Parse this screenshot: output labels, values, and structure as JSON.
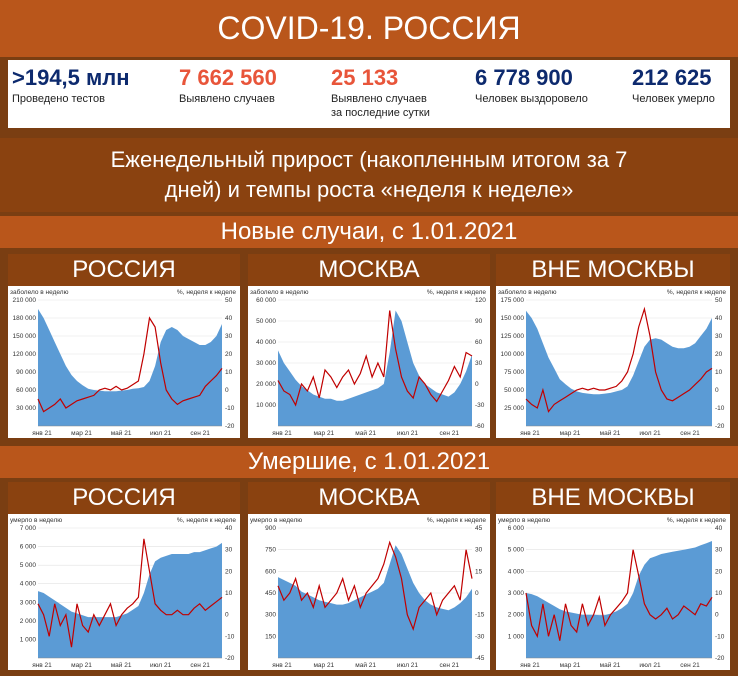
{
  "title": "COVID-19. РОССИЯ",
  "stats": [
    {
      "value": ">194,5 млн",
      "label": "Проведено тестов",
      "label2": "",
      "color": "#0d2a6e"
    },
    {
      "value": "7 662 560",
      "label": "Выявлено случаев",
      "label2": "",
      "color": "#e8553a"
    },
    {
      "value": "25 133",
      "label": "Выявлено случаев",
      "label2": "за последние сутки",
      "color": "#e8553a"
    },
    {
      "value": "6 778 900",
      "label": "Человек выздоровело",
      "label2": "",
      "color": "#0d2a6e"
    },
    {
      "value": "212 625",
      "label": "Человек умерло",
      "label2": "",
      "color": "#0d2a6e"
    }
  ],
  "subtitle_line1": "Еженедельный прирост (накопленным итогом за 7",
  "subtitle_line2": "дней) и темпы роста «неделя к неделе»",
  "section_cases": "Новые случаи, с 1.01.2021",
  "section_deaths": "Умершие, с 1.01.2021",
  "region_names": [
    "РОССИЯ",
    "МОСКВА",
    "ВНЕ МОСКВЫ"
  ],
  "colors": {
    "area": "#5b9bd5",
    "line": "#c00000",
    "orange": "#b9561b",
    "brown": "#8a4210"
  },
  "chart_data": [
    {
      "id": "cases-russia",
      "type": "area",
      "ylabel_left": "заболело в неделю",
      "ylabel_right": "%, неделя к неделе",
      "x_ticks": [
        "янв 21",
        "мар 21",
        "май 21",
        "июл 21",
        "сен 21"
      ],
      "ylim_left": [
        0,
        210000
      ],
      "y_ticks_left": [
        "30 000",
        "60 000",
        "90 000",
        "120 000",
        "150 000",
        "180 000",
        "210 000"
      ],
      "ylim_right": [
        -20,
        50
      ],
      "y_ticks_right": [
        "-20",
        "-10",
        "0",
        "10",
        "20",
        "30",
        "40",
        "50"
      ],
      "series": [
        {
          "values": [
            195000,
            180000,
            160000,
            140000,
            120000,
            100000,
            85000,
            75000,
            68000,
            62000,
            60000,
            59000,
            58000,
            58000,
            58000,
            59000,
            60000,
            62000,
            63000,
            65000,
            75000,
            100000,
            140000,
            160000,
            165000,
            160000,
            150000,
            145000,
            140000,
            135000,
            135000,
            140000,
            150000,
            170000
          ]
        },
        {
          "values": [
            -5,
            -12,
            -10,
            -8,
            -5,
            -10,
            -8,
            -6,
            -5,
            -4,
            -3,
            0,
            1,
            0,
            2,
            0,
            1,
            3,
            5,
            20,
            40,
            35,
            15,
            0,
            -5,
            -8,
            -6,
            -5,
            -4,
            -3,
            2,
            5,
            8,
            12
          ]
        }
      ]
    },
    {
      "id": "cases-moscow",
      "type": "area",
      "ylabel_left": "заболело в неделю",
      "ylabel_right": "%, неделя к неделе",
      "x_ticks": [
        "янв 21",
        "мар 21",
        "май 21",
        "июл 21",
        "сен 21"
      ],
      "ylim_left": [
        0,
        60000
      ],
      "y_ticks_left": [
        "10 000",
        "20 000",
        "30 000",
        "40 000",
        "50 000",
        "60 000"
      ],
      "ylim_right": [
        -60,
        120
      ],
      "y_ticks_right": [
        "-60",
        "-30",
        "0",
        "30",
        "60",
        "90",
        "120"
      ],
      "series": [
        {
          "values": [
            36000,
            30000,
            26000,
            22000,
            19000,
            17000,
            15000,
            14000,
            13000,
            13000,
            12000,
            12000,
            13000,
            14000,
            15000,
            16000,
            17000,
            18000,
            20000,
            35000,
            55000,
            50000,
            40000,
            30000,
            24000,
            20000,
            18000,
            16000,
            15000,
            14000,
            16000,
            20000,
            26000,
            34000
          ]
        },
        {
          "values": [
            5,
            -10,
            -15,
            -30,
            0,
            -10,
            10,
            -20,
            20,
            10,
            -5,
            10,
            20,
            0,
            15,
            40,
            10,
            30,
            10,
            105,
            50,
            10,
            -10,
            -20,
            10,
            0,
            -15,
            -25,
            -10,
            5,
            25,
            10,
            45,
            40
          ]
        }
      ]
    },
    {
      "id": "cases-outside",
      "type": "area",
      "ylabel_left": "заболело в неделю",
      "ylabel_right": "%, неделя к неделе",
      "x_ticks": [
        "янв 21",
        "мар 21",
        "май 21",
        "июл 21",
        "сен 21"
      ],
      "ylim_left": [
        0,
        175000
      ],
      "y_ticks_left": [
        "25 000",
        "50 000",
        "75 000",
        "100 000",
        "125 000",
        "150 000",
        "175 000"
      ],
      "ylim_right": [
        -20,
        50
      ],
      "y_ticks_right": [
        "-20",
        "-10",
        "0",
        "10",
        "20",
        "30",
        "40",
        "50"
      ],
      "series": [
        {
          "values": [
            160000,
            150000,
            135000,
            115000,
            95000,
            80000,
            65000,
            58000,
            52000,
            48000,
            46000,
            45000,
            44000,
            44000,
            45000,
            46000,
            48000,
            50000,
            55000,
            70000,
            90000,
            110000,
            120000,
            122000,
            120000,
            115000,
            110000,
            108000,
            108000,
            110000,
            115000,
            125000,
            135000,
            150000
          ]
        },
        {
          "values": [
            -5,
            -8,
            -10,
            0,
            -12,
            -8,
            -6,
            -4,
            -2,
            0,
            1,
            0,
            1,
            0,
            0,
            1,
            2,
            5,
            10,
            20,
            35,
            45,
            30,
            10,
            0,
            -5,
            -6,
            -4,
            -2,
            0,
            3,
            6,
            10,
            12
          ]
        }
      ]
    },
    {
      "id": "deaths-russia",
      "type": "area",
      "ylabel_left": "умерло в неделю",
      "ylabel_right": "%, неделя к неделе",
      "x_ticks": [
        "янв 21",
        "мар 21",
        "май 21",
        "июл 21",
        "сен 21"
      ],
      "ylim_left": [
        0,
        7000
      ],
      "y_ticks_left": [
        "1 000",
        "2 000",
        "3 000",
        "4 000",
        "5 000",
        "6 000",
        "7 000"
      ],
      "ylim_right": [
        -20,
        40
      ],
      "y_ticks_right": [
        "-20",
        "-10",
        "0",
        "10",
        "20",
        "30",
        "40"
      ],
      "series": [
        {
          "values": [
            3600,
            3500,
            3300,
            3100,
            2900,
            2700,
            2500,
            2400,
            2300,
            2200,
            2200,
            2200,
            2200,
            2200,
            2200,
            2300,
            2400,
            2600,
            2800,
            3500,
            4500,
            5200,
            5400,
            5500,
            5600,
            5600,
            5600,
            5600,
            5700,
            5700,
            5800,
            5900,
            6000,
            6200
          ]
        },
        {
          "values": [
            5,
            0,
            -10,
            5,
            -5,
            0,
            -15,
            5,
            -5,
            -8,
            0,
            -5,
            0,
            5,
            -5,
            0,
            3,
            5,
            8,
            35,
            20,
            5,
            2,
            0,
            0,
            2,
            0,
            0,
            3,
            5,
            2,
            4,
            6,
            8
          ]
        }
      ]
    },
    {
      "id": "deaths-moscow",
      "type": "area",
      "ylabel_left": "умерло в неделю",
      "ylabel_right": "%, неделя к неделе",
      "x_ticks": [
        "янв 21",
        "мар 21",
        "май 21",
        "июл 21",
        "сен 21"
      ],
      "ylim_left": [
        0,
        900
      ],
      "y_ticks_left": [
        "150",
        "300",
        "450",
        "600",
        "750",
        "900"
      ],
      "ylim_right": [
        -45,
        45
      ],
      "y_ticks_right": [
        "-45",
        "-30",
        "-15",
        "0",
        "15",
        "30",
        "45"
      ],
      "series": [
        {
          "values": [
            560,
            540,
            520,
            500,
            460,
            440,
            420,
            400,
            390,
            380,
            370,
            370,
            380,
            400,
            420,
            440,
            460,
            480,
            520,
            650,
            780,
            720,
            620,
            520,
            450,
            400,
            370,
            350,
            340,
            330,
            350,
            380,
            420,
            480
          ]
        },
        {
          "values": [
            5,
            -5,
            0,
            10,
            -5,
            0,
            -10,
            5,
            -10,
            -5,
            0,
            10,
            -5,
            5,
            -10,
            0,
            5,
            10,
            20,
            35,
            25,
            10,
            -15,
            -25,
            -10,
            -5,
            0,
            -15,
            -5,
            0,
            5,
            -5,
            30,
            10
          ]
        }
      ]
    },
    {
      "id": "deaths-outside",
      "type": "area",
      "ylabel_left": "умерло в неделю",
      "ylabel_right": "%, неделя к неделе",
      "x_ticks": [
        "янв 21",
        "мар 21",
        "май 21",
        "июл 21",
        "сен 21"
      ],
      "ylim_left": [
        0,
        6000
      ],
      "y_ticks_left": [
        "1 000",
        "2 000",
        "3 000",
        "4 000",
        "5 000",
        "6 000"
      ],
      "ylim_right": [
        -20,
        40
      ],
      "y_ticks_right": [
        "-20",
        "-10",
        "0",
        "10",
        "20",
        "30",
        "40"
      ],
      "series": [
        {
          "values": [
            3000,
            2950,
            2850,
            2700,
            2550,
            2400,
            2250,
            2150,
            2100,
            2050,
            2000,
            2000,
            2000,
            1980,
            1980,
            2050,
            2150,
            2300,
            2500,
            3000,
            3800,
            4300,
            4600,
            4700,
            4800,
            4850,
            4900,
            4950,
            5000,
            5050,
            5100,
            5200,
            5300,
            5400
          ]
        },
        {
          "values": [
            10,
            -5,
            -10,
            5,
            -10,
            0,
            -12,
            5,
            -5,
            -8,
            5,
            -5,
            0,
            8,
            -5,
            0,
            3,
            6,
            10,
            30,
            18,
            5,
            0,
            -2,
            0,
            3,
            -2,
            0,
            4,
            2,
            0,
            5,
            4,
            8
          ]
        }
      ]
    }
  ]
}
